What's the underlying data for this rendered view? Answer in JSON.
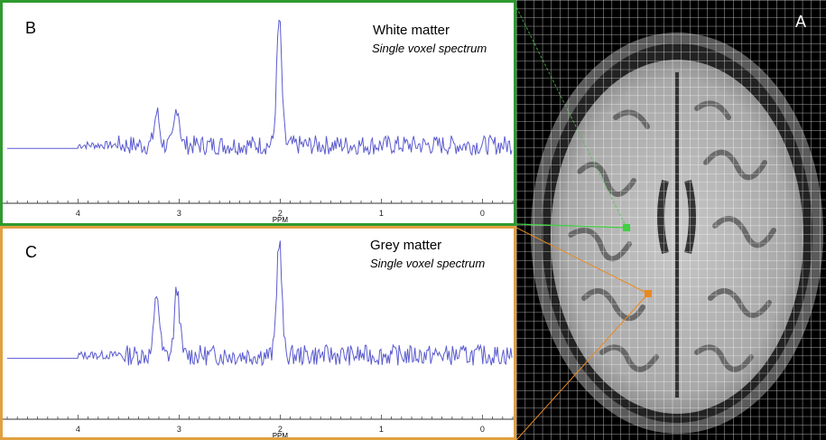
{
  "panels": {
    "b": {
      "label": "B",
      "title": "White matter",
      "subtitle": "Single voxel spectrum",
      "border_color": "#2e9a2e"
    },
    "c": {
      "label": "C",
      "title": "Grey matter",
      "subtitle": "Single voxel spectrum",
      "border_color": "#e0a040"
    },
    "a": {
      "label": "A",
      "voxel_colors": {
        "white_matter": "#3fd13f",
        "grey_matter": "#e88a20"
      }
    }
  },
  "chart_data": [
    {
      "type": "line",
      "title": "White matter",
      "xlabel": "PPM",
      "x_reversed": true,
      "xlim": [
        4.7,
        -0.3
      ],
      "x_ticks": [
        4,
        3,
        2,
        1,
        0
      ],
      "series_color": "#5a5ad0",
      "peaks": [
        {
          "ppm": 2.01,
          "value": 0.95
        },
        {
          "ppm": 3.02,
          "value": 0.42
        },
        {
          "ppm": 3.22,
          "value": 0.38
        }
      ],
      "baseline_level": 0.18,
      "noise": 0.1
    },
    {
      "type": "line",
      "title": "Grey matter",
      "xlabel": "PPM",
      "x_reversed": true,
      "xlim": [
        4.7,
        -0.3
      ],
      "x_ticks": [
        4,
        3,
        2,
        1,
        0
      ],
      "series_color": "#5a5ad0",
      "peaks": [
        {
          "ppm": 2.01,
          "value": 0.97
        },
        {
          "ppm": 3.02,
          "value": 0.65
        },
        {
          "ppm": 3.22,
          "value": 0.62
        }
      ],
      "baseline_level": 0.22,
      "noise": 0.11
    }
  ]
}
